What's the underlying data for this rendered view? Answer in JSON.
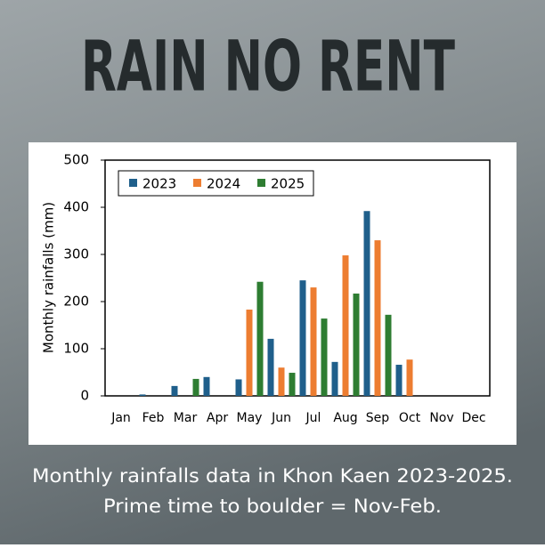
{
  "title": "RAIN NO RENT",
  "chart_data": {
    "type": "bar",
    "ylabel": "Monthly rainfalls (mm)",
    "categories": [
      "Jan",
      "Feb",
      "Mar",
      "Apr",
      "May",
      "Jun",
      "Jul",
      "Aug",
      "Sep",
      "Oct",
      "Nov",
      "Dec"
    ],
    "series": [
      {
        "name": "2023",
        "color": "#1f5f8b",
        "values": [
          null,
          3,
          21,
          40,
          35,
          121,
          245,
          72,
          392,
          66,
          null,
          null
        ]
      },
      {
        "name": "2024",
        "color": "#ed7d31",
        "values": [
          null,
          null,
          null,
          null,
          183,
          60,
          230,
          298,
          330,
          77,
          null,
          null
        ]
      },
      {
        "name": "2025",
        "color": "#2e7d32",
        "values": [
          null,
          null,
          36,
          null,
          242,
          49,
          164,
          217,
          172,
          null,
          null,
          null
        ]
      }
    ],
    "ylim": [
      0,
      500
    ],
    "yticks": [
      0,
      100,
      200,
      300,
      400,
      500
    ],
    "grid": false,
    "legend": "upper-left"
  },
  "caption": [
    "Monthly rainfalls data in Khon Kaen 2023-2025.",
    "Prime time to boulder = Nov-Feb."
  ]
}
